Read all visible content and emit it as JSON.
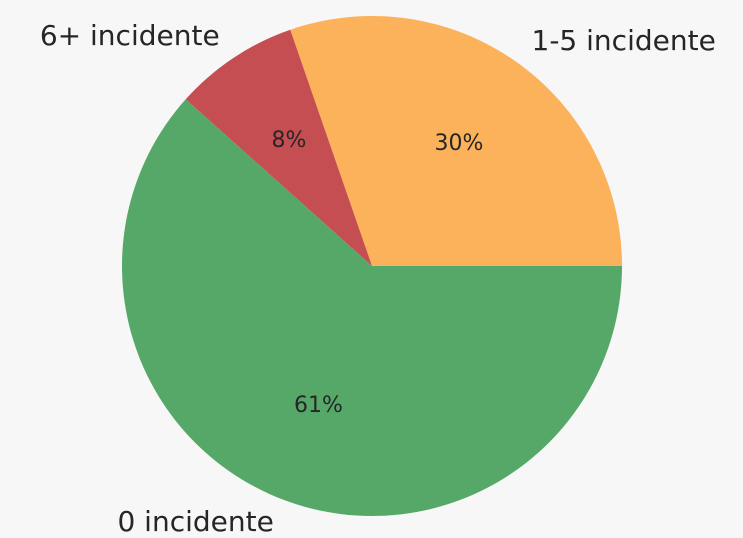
{
  "chart_data": {
    "type": "pie",
    "categories": [
      "1-5 incidente",
      "6+ incidente",
      "0 incidente"
    ],
    "values": [
      30,
      8,
      61
    ],
    "value_labels": [
      "30%",
      "8%",
      "61%"
    ],
    "colors": [
      "#fbb25a",
      "#c44e52",
      "#55a868"
    ],
    "start_angle": 0
  }
}
